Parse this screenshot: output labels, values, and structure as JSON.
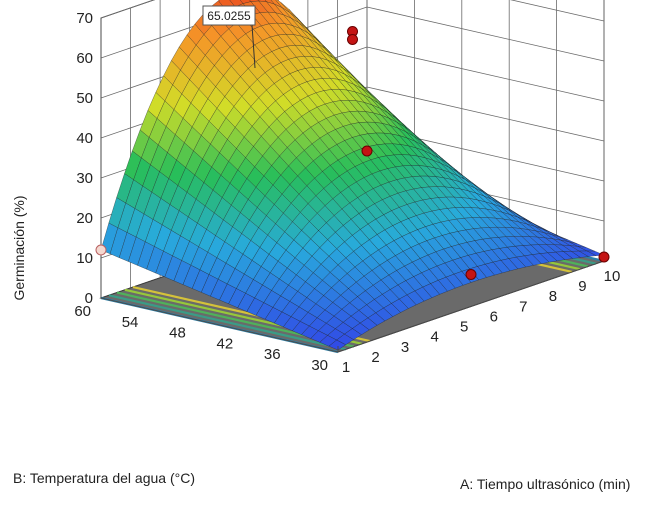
{
  "chart_data": {
    "type": "surface3d",
    "zlabel": "Germinación (%)",
    "xlabel": "A: Tiempo ultrasónico (min)",
    "ylabel": "B: Temperatura del agua (°C)",
    "x_ticks": [
      "1",
      "2",
      "3",
      "4",
      "5",
      "6",
      "7",
      "8",
      "9",
      "10"
    ],
    "y_ticks": [
      "30",
      "36",
      "42",
      "48",
      "54",
      "60"
    ],
    "z_ticks": [
      "0",
      "10",
      "20",
      "30",
      "40",
      "50",
      "60",
      "70"
    ],
    "xlim": [
      1,
      10
    ],
    "ylim": [
      30,
      60
    ],
    "zlim": [
      0,
      70
    ],
    "peak_label": "65.0255",
    "surface_corners": [
      {
        "x": 1,
        "y": 30,
        "z": 0.5
      },
      {
        "x": 1,
        "y": 60,
        "z": 12
      },
      {
        "x": 10,
        "y": 30,
        "z": 1.5
      },
      {
        "x": 10,
        "y": 60,
        "z": 14
      }
    ],
    "surface_peak": {
      "x": 5.5,
      "y": 60,
      "z": 65.0255
    },
    "design_points": [
      {
        "x": 1,
        "y": 60,
        "z": 12
      },
      {
        "x": 5.5,
        "y": 30,
        "z": 8
      },
      {
        "x": 5.5,
        "y": 45,
        "z": 62
      },
      {
        "x": 5.5,
        "y": 45,
        "z": 60
      },
      {
        "x": 5.5,
        "y": 60,
        "z": 67
      },
      {
        "x": 10,
        "y": 30,
        "z": 1
      },
      {
        "x": 10,
        "y": 60,
        "z": 14
      }
    ],
    "grid": true,
    "colormap": "blue-green-yellow-red"
  }
}
